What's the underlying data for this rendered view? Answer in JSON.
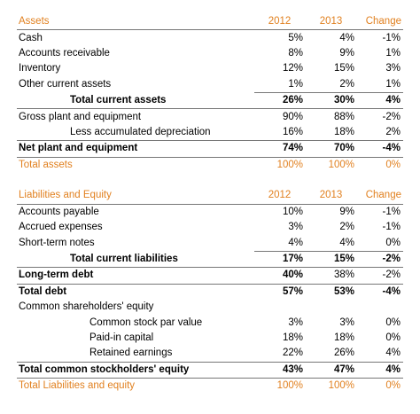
{
  "assets": {
    "header": [
      "Assets",
      "2012",
      "2013",
      "Change"
    ],
    "rows": [
      {
        "label": "Cash",
        "y2012": "5%",
        "y2013": "4%",
        "change": "-1%"
      },
      {
        "label": "Accounts receivable",
        "y2012": "8%",
        "y2013": "9%",
        "change": "1%"
      },
      {
        "label": "Inventory",
        "y2012": "12%",
        "y2013": "15%",
        "change": "3%"
      },
      {
        "label": "Other current assets",
        "y2012": "1%",
        "y2013": "2%",
        "change": "1%"
      },
      {
        "label": "Total current assets",
        "y2012": "26%",
        "y2013": "30%",
        "change": "4%"
      },
      {
        "label": "Gross plant and equipment",
        "y2012": "90%",
        "y2013": "88%",
        "change": "-2%"
      },
      {
        "label": "Less accumulated depreciation",
        "y2012": "16%",
        "y2013": "18%",
        "change": "2%"
      },
      {
        "label": "Net plant and equipment",
        "y2012": "74%",
        "y2013": "70%",
        "change": "-4%"
      },
      {
        "label": "Total assets",
        "y2012": "100%",
        "y2013": "100%",
        "change": "0%"
      }
    ]
  },
  "liabilities": {
    "header": [
      "Liabilities and Equity",
      "2012",
      "2013",
      "Change"
    ],
    "rows": [
      {
        "label": "Accounts payable",
        "y2012": "10%",
        "y2013": "9%",
        "change": "-1%"
      },
      {
        "label": "Accrued expenses",
        "y2012": "3%",
        "y2013": "2%",
        "change": "-1%"
      },
      {
        "label": "Short-term notes",
        "y2012": "4%",
        "y2013": "4%",
        "change": "0%"
      },
      {
        "label": "Total current liabilities",
        "y2012": "17%",
        "y2013": "15%",
        "change": "-2%"
      },
      {
        "label": "Long-term debt",
        "y2012": "40%",
        "y2013": "38%",
        "change": "-2%"
      },
      {
        "label": "Total debt",
        "y2012": "57%",
        "y2013": "53%",
        "change": "-4%"
      },
      {
        "label": "Common shareholders' equity",
        "y2012": "",
        "y2013": "",
        "change": ""
      },
      {
        "label": "Common stock par value",
        "y2012": "3%",
        "y2013": "3%",
        "change": "0%"
      },
      {
        "label": "Paid-in capital",
        "y2012": "18%",
        "y2013": "18%",
        "change": "0%"
      },
      {
        "label": "Retained earnings",
        "y2012": "22%",
        "y2013": "26%",
        "change": "4%"
      },
      {
        "label": "Total common stockholders' equity",
        "y2012": "43%",
        "y2013": "47%",
        "change": "4%"
      },
      {
        "label": "Total Liabilities and equity",
        "y2012": "100%",
        "y2013": "100%",
        "change": "0%"
      }
    ]
  }
}
